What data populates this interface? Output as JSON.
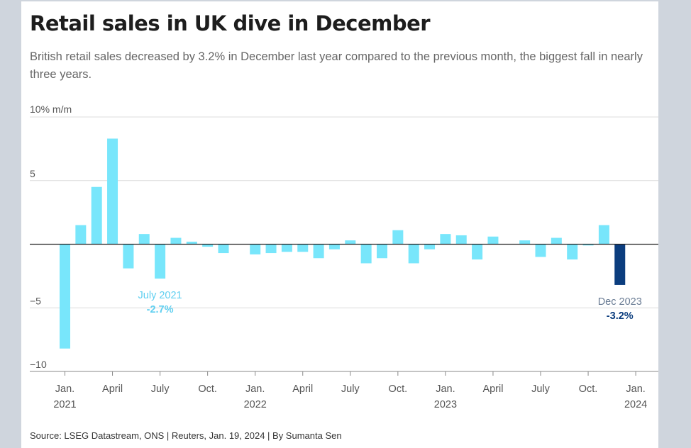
{
  "title": "Retail sales in UK dive in December",
  "subtitle": "British retail sales decreased by 3.2% in December last year compared to the previous month, the biggest fall in nearly three years.",
  "source": "Source: LSEG Datastream, ONS | Reuters, Jan. 19, 2024 | By Sumanta Sen",
  "colors": {
    "bar": "#78e6fb",
    "highlight": "#0b3d7e",
    "annotation_light": "#5fcff0"
  },
  "chart_data": {
    "type": "bar",
    "unit_label": "10% m/m",
    "ylim": [
      -10,
      10
    ],
    "yticks": [
      {
        "value": 10,
        "label": ""
      },
      {
        "value": 5,
        "label": "5"
      },
      {
        "value": 0,
        "label": ""
      },
      {
        "value": -5,
        "label": "−5"
      },
      {
        "value": -10,
        "label": "−10"
      }
    ],
    "categories": [
      "Jan 2021",
      "Feb 2021",
      "Mar 2021",
      "Apr 2021",
      "May 2021",
      "Jun 2021",
      "Jul 2021",
      "Aug 2021",
      "Sep 2021",
      "Oct 2021",
      "Nov 2021",
      "Dec 2021",
      "Jan 2022",
      "Feb 2022",
      "Mar 2022",
      "Apr 2022",
      "May 2022",
      "Jun 2022",
      "Jul 2022",
      "Aug 2022",
      "Sep 2022",
      "Oct 2022",
      "Nov 2022",
      "Dec 2022",
      "Jan 2023",
      "Feb 2023",
      "Mar 2023",
      "Apr 2023",
      "May 2023",
      "Jun 2023",
      "Jul 2023",
      "Aug 2023",
      "Sep 2023",
      "Oct 2023",
      "Nov 2023",
      "Dec 2023"
    ],
    "values": [
      -8.2,
      1.5,
      4.5,
      8.3,
      -1.9,
      0.8,
      -2.7,
      0.5,
      0.2,
      -0.2,
      -0.7,
      0.0,
      -0.8,
      -0.7,
      -0.6,
      -0.6,
      -1.1,
      -0.4,
      0.3,
      -1.5,
      -1.1,
      1.1,
      -1.5,
      -0.4,
      0.8,
      0.7,
      -1.2,
      0.6,
      0.0,
      0.3,
      -1.0,
      0.5,
      -1.2,
      -0.1,
      1.5,
      -3.2
    ],
    "highlight_index": 35,
    "xticks": [
      {
        "index": 0,
        "label": "Jan.",
        "year": "2021"
      },
      {
        "index": 3,
        "label": "April",
        "year": ""
      },
      {
        "index": 6,
        "label": "July",
        "year": ""
      },
      {
        "index": 9,
        "label": "Oct.",
        "year": ""
      },
      {
        "index": 12,
        "label": "Jan.",
        "year": "2022"
      },
      {
        "index": 15,
        "label": "April",
        "year": ""
      },
      {
        "index": 18,
        "label": "July",
        "year": ""
      },
      {
        "index": 21,
        "label": "Oct.",
        "year": ""
      },
      {
        "index": 24,
        "label": "Jan.",
        "year": "2023"
      },
      {
        "index": 27,
        "label": "April",
        "year": ""
      },
      {
        "index": 30,
        "label": "July",
        "year": ""
      },
      {
        "index": 33,
        "label": "Oct.",
        "year": ""
      },
      {
        "index": 36,
        "label": "Jan.",
        "year": "2024"
      }
    ],
    "annotations": [
      {
        "index": 6,
        "label": "July 2021",
        "value": "-2.7%",
        "style": "light"
      },
      {
        "index": 35,
        "label": "Dec 2023",
        "value": "-3.2%",
        "style": "dark"
      }
    ],
    "grid": true,
    "legend": "none"
  }
}
